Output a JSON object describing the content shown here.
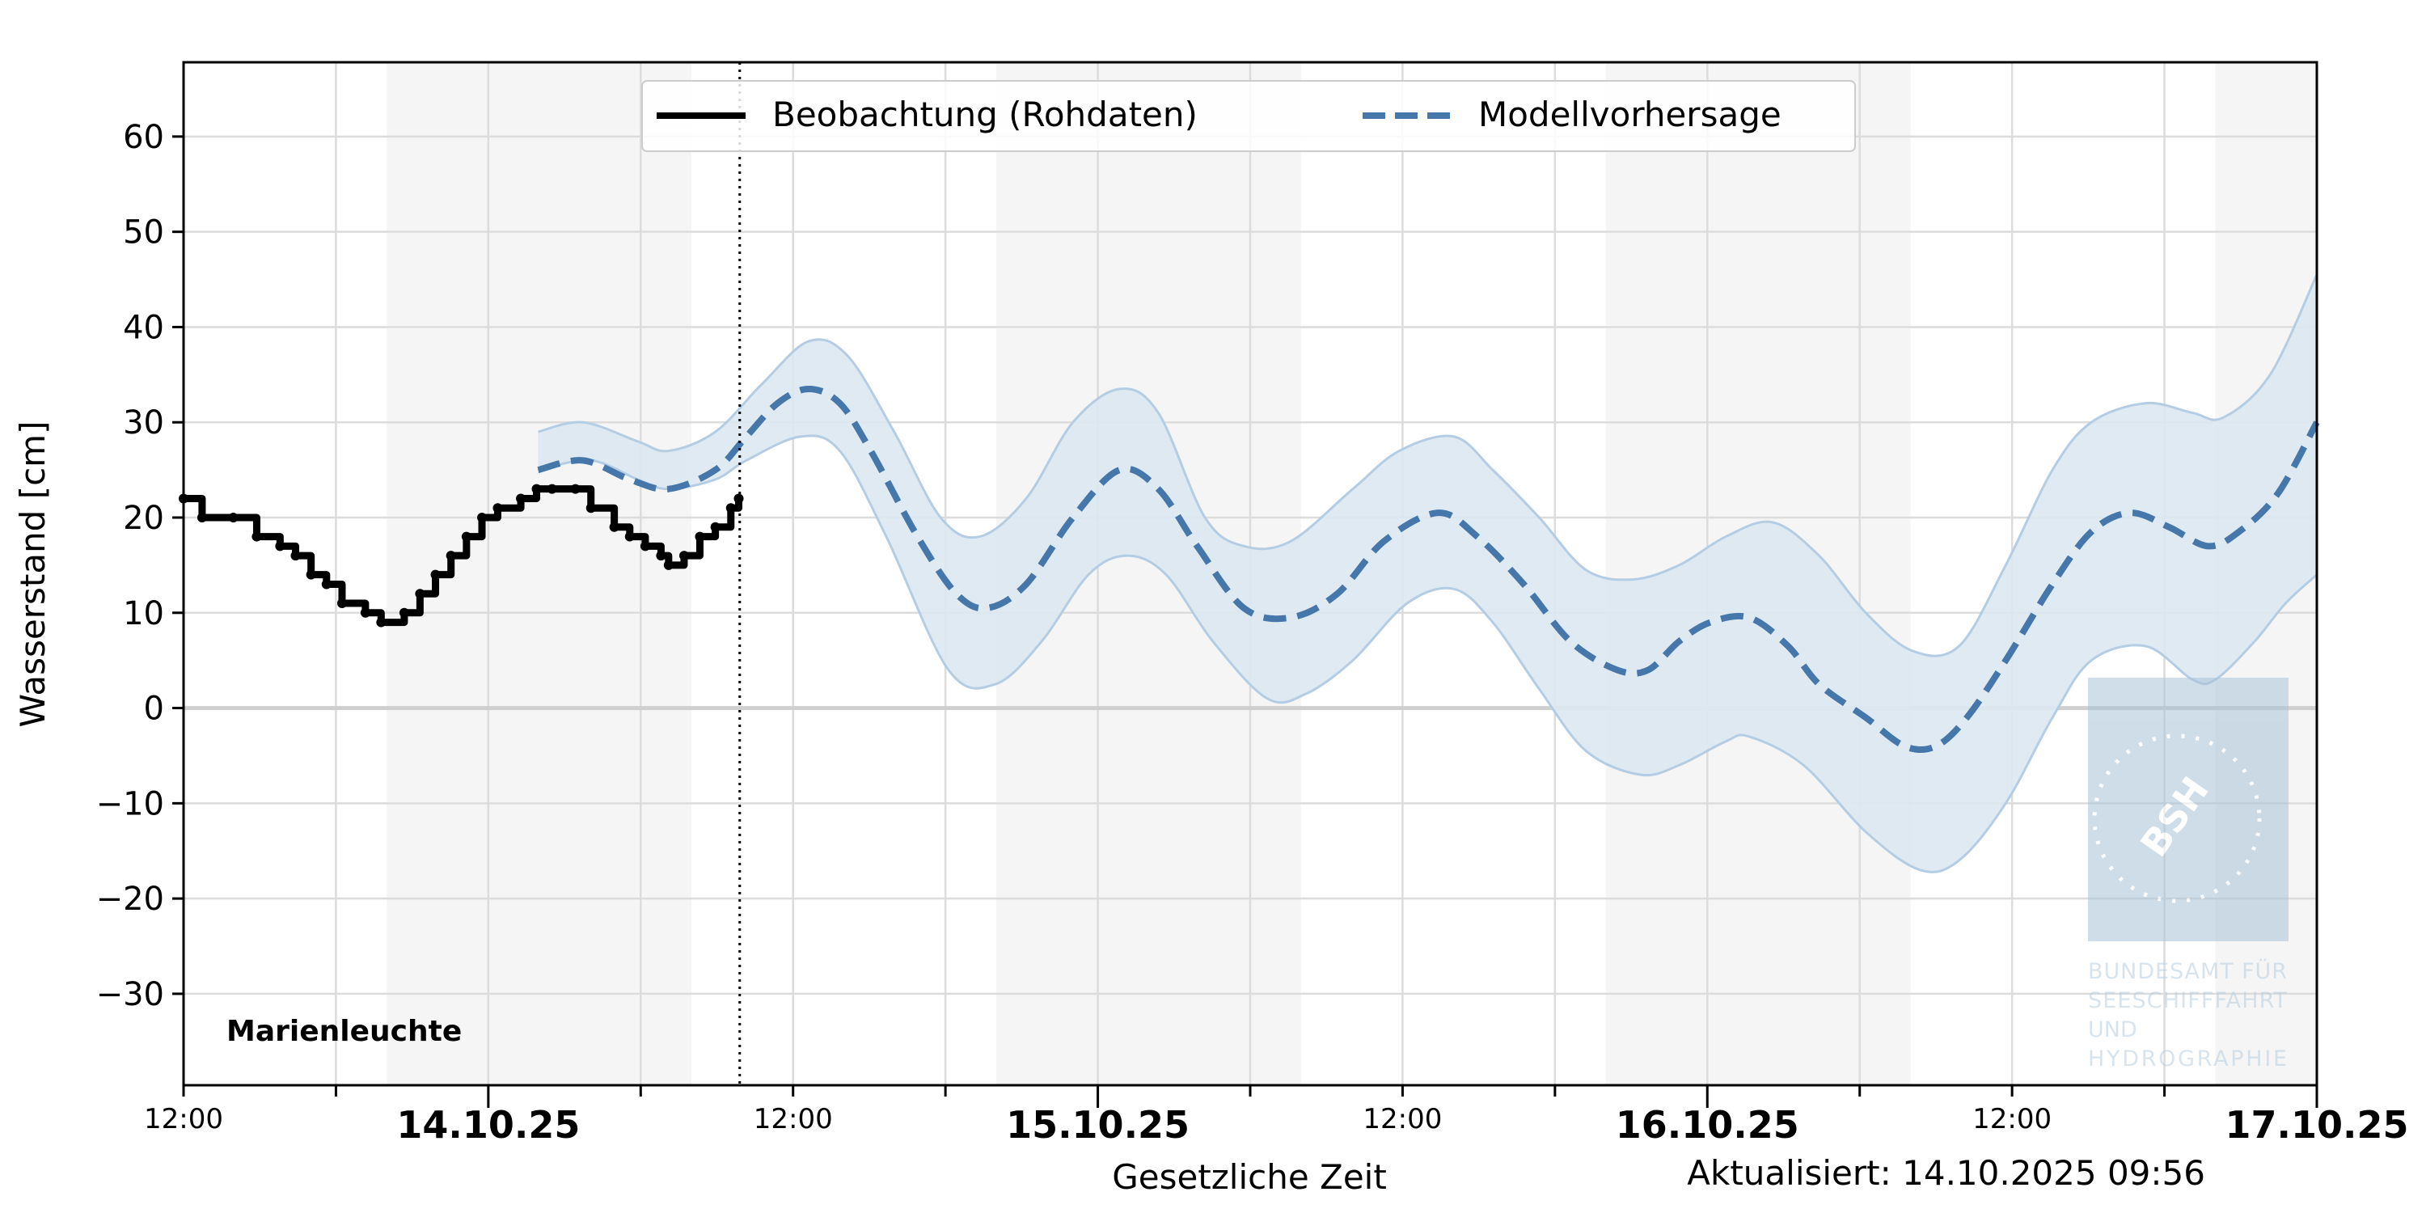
{
  "chart_data": {
    "type": "line",
    "station": "Marienleuchte",
    "ylabel": "Wasserstand [cm]",
    "xlabel": "Gesetzliche Zeit",
    "updated": "Aktualisiert: 14.10.2025 09:56",
    "x_unit": "hours since 13.10.25 12:00",
    "xlim": [
      0,
      84
    ],
    "ylim": [
      -39.6,
      67.8
    ],
    "yticks": [
      -30,
      -20,
      -10,
      0,
      10,
      20,
      30,
      40,
      50,
      60
    ],
    "ytick_labels": [
      "−30",
      "−20",
      "−10",
      "0",
      "10",
      "20",
      "30",
      "40",
      "50",
      "60"
    ],
    "xticks": [
      {
        "x": 0,
        "label": "12:00",
        "major": false
      },
      {
        "x": 12,
        "label": "14.10.25",
        "major": true
      },
      {
        "x": 24,
        "label": "12:00",
        "major": false
      },
      {
        "x": 36,
        "label": "15.10.25",
        "major": true
      },
      {
        "x": 48,
        "label": "12:00",
        "major": false
      },
      {
        "x": 60,
        "label": "16.10.25",
        "major": true
      },
      {
        "x": 72,
        "label": "12:00",
        "major": false
      },
      {
        "x": 84,
        "label": "17.10.25",
        "major": true
      }
    ],
    "night_shading": [
      [
        8,
        20
      ],
      [
        32,
        44
      ],
      [
        56,
        68
      ],
      [
        80,
        84
      ]
    ],
    "now_marker": 21.9,
    "grid": true,
    "legend": {
      "position": "top-center",
      "entries": [
        "Beobachtung (Rohdaten)",
        "Modellvorhersage"
      ]
    },
    "colors": {
      "observation": "#000000",
      "forecast": "#4677ab",
      "band_fill": "#dce8f2",
      "band_edge": "#b5cde3",
      "night": "#f5f5f5"
    },
    "series": [
      {
        "name": "Beobachtung (Rohdaten)",
        "style": "solid-step",
        "x": [
          0,
          0.73,
          1.96,
          2.88,
          3.8,
          4.41,
          5.02,
          5.63,
          6.24,
          7.16,
          7.78,
          8.69,
          9.31,
          9.92,
          10.53,
          11.14,
          11.75,
          12.37,
          13.28,
          13.9,
          14.51,
          15.43,
          16.04,
          16.96,
          17.57,
          18.18,
          18.8,
          19.1,
          19.71,
          20.33,
          20.94,
          21.55,
          21.86
        ],
        "y": [
          22,
          20,
          20,
          18,
          17,
          16,
          14,
          13,
          11,
          10,
          9,
          10,
          12,
          14,
          16,
          18,
          20,
          21,
          22,
          23,
          23,
          23,
          21,
          19,
          18,
          17,
          16,
          15,
          16,
          18,
          19,
          21,
          22
        ]
      },
      {
        "name": "Modellvorhersage",
        "style": "dashed",
        "x": [
          13.96,
          15.73,
          17.57,
          19.1,
          20.94,
          22.16,
          23.39,
          24.61,
          25.84,
          27.06,
          28.9,
          30.43,
          31.65,
          33.18,
          35.02,
          36.86,
          38.38,
          39.91,
          41.75,
          43.59,
          45.43,
          47.26,
          49.4,
          50.94,
          52.77,
          54.61,
          56.45,
          57.67,
          58.89,
          60.12,
          61.65,
          63.18,
          64.4,
          66.24,
          67.77,
          69.0,
          70.22,
          71.75,
          73.59,
          75.12,
          76.65,
          78.18,
          79.71,
          80.93,
          82.46,
          84
        ],
        "y": [
          25,
          26,
          24,
          23,
          25,
          28.5,
          32,
          33.5,
          32,
          27,
          18,
          12,
          10.5,
          13,
          20,
          25,
          23,
          17,
          10.5,
          9.5,
          12,
          17.5,
          20.5,
          18,
          13,
          7,
          4,
          4,
          7,
          9,
          9.5,
          6.5,
          2.5,
          -1,
          -4,
          -4,
          -1,
          5,
          13,
          18.5,
          20.5,
          19,
          17,
          18.5,
          22.5,
          30
        ]
      },
      {
        "name": "Vorhersage obere Grenze",
        "style": "band-upper",
        "x": [
          13.96,
          15.73,
          17.88,
          19.1,
          20.94,
          22.77,
          24.61,
          26.14,
          27.98,
          29.81,
          31.35,
          33.18,
          35.02,
          36.86,
          38.38,
          40.22,
          41.75,
          43.59,
          46.04,
          47.87,
          50.02,
          51.55,
          53.38,
          55.22,
          57.06,
          58.89,
          60.73,
          62.57,
          64.4,
          66.24,
          68.08,
          69.91,
          71.75,
          73.59,
          75.12,
          77.26,
          79.1,
          80.32,
          82.16,
          84
        ],
        "y": [
          29,
          30,
          28,
          27,
          29,
          34,
          38.5,
          37,
          29,
          20,
          18,
          22,
          30,
          33.5,
          31,
          20,
          17,
          17.5,
          23,
          27,
          28.5,
          25,
          20,
          14.5,
          13.5,
          15,
          18,
          19.5,
          16,
          10,
          6,
          6.5,
          15,
          25,
          30,
          32,
          31,
          30.5,
          35,
          45.5
        ]
      },
      {
        "name": "Vorhersage untere Grenze",
        "style": "band-lower",
        "x": [
          13.96,
          16.04,
          17.88,
          19.1,
          20.94,
          22.16,
          24.3,
          25.84,
          27.67,
          30.12,
          31.96,
          33.79,
          35.63,
          37.16,
          38.69,
          40.53,
          42.67,
          44.2,
          46.04,
          48.18,
          50.02,
          51.55,
          53.38,
          55.22,
          57.36,
          58.89,
          60.73,
          61.65,
          63.79,
          66.24,
          68.38,
          69.91,
          71.75,
          73.59,
          75.12,
          77.26,
          79.1,
          80.01,
          81.55,
          82.77,
          84
        ],
        "y": [
          25,
          26,
          24,
          23,
          24,
          26,
          28.5,
          27,
          18,
          4,
          2.5,
          7,
          14,
          16,
          14,
          7,
          1,
          1.5,
          5,
          11,
          12.5,
          9,
          2,
          -4.5,
          -7,
          -6,
          -3.5,
          -3,
          -6,
          -13,
          -17,
          -16,
          -10,
          -1,
          5,
          6.5,
          3,
          3,
          7,
          11,
          14
        ]
      }
    ],
    "logo": {
      "abbr": "BSH",
      "lines": [
        "BUNDESAMT FÜR",
        "SEESCHIFFFAHRT",
        "UND",
        "HYDROGRAPHIE"
      ]
    }
  }
}
